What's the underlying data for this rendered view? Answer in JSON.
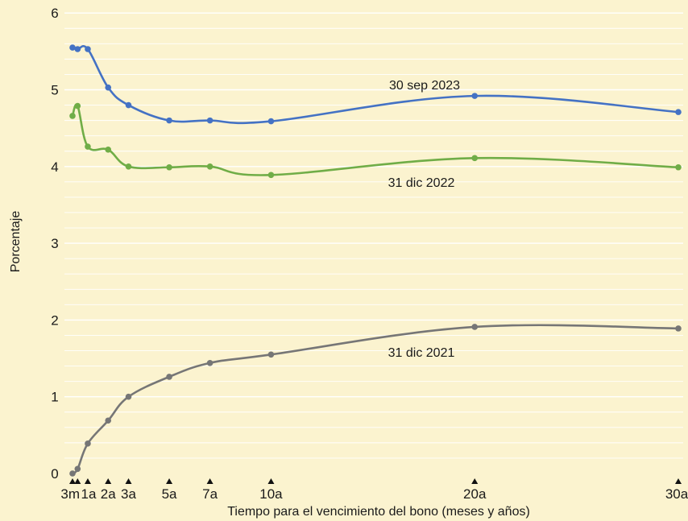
{
  "chart_data": {
    "type": "line",
    "title": "",
    "xlabel": "Tiempo para el vencimiento del bono (meses y años)",
    "ylabel": "Porcentaje",
    "ylim": [
      0,
      6
    ],
    "yticks": [
      "0",
      "1",
      "2",
      "3",
      "4",
      "5",
      "6"
    ],
    "x_maturities_years": [
      0.25,
      0.5,
      1,
      2,
      3,
      5,
      7,
      10,
      20,
      30
    ],
    "xtick_labels": [
      "3m",
      "",
      "1a",
      "2a",
      "3a",
      "5a",
      "7a",
      "10a",
      "20a",
      "30a"
    ],
    "grid": true,
    "background_color": "#fbf3cf",
    "grid_color": "#ffffff",
    "series": [
      {
        "name": "30 sep 2023",
        "color": "#4472c4",
        "values": [
          5.55,
          5.53,
          5.53,
          5.03,
          4.8,
          4.6,
          4.6,
          4.59,
          4.92,
          4.71
        ]
      },
      {
        "name": "31 dic 2022",
        "color": "#70ad47",
        "values": [
          4.66,
          4.79,
          4.26,
          4.22,
          4.0,
          3.99,
          4.0,
          3.89,
          4.11,
          3.99
        ]
      },
      {
        "name": "31 dic 2021",
        "color": "#767676",
        "values": [
          0.0,
          0.06,
          0.39,
          0.69,
          1.0,
          1.26,
          1.44,
          1.55,
          1.91,
          1.89
        ]
      }
    ]
  }
}
